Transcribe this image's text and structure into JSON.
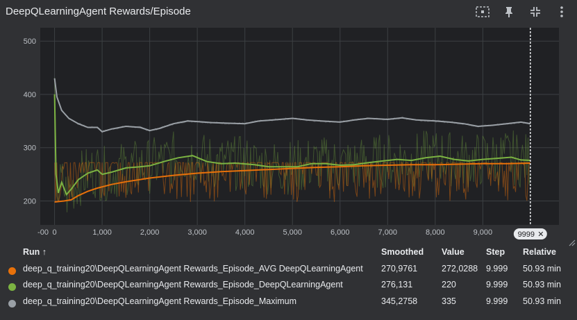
{
  "title": "DeepQLearningAgent Rewards/Episode",
  "toolbar": {
    "icons": [
      "fit-domain-icon",
      "pin-icon",
      "collapse-icon",
      "more-vert-icon"
    ]
  },
  "colors": {
    "avg": "#e8710a",
    "agent": "#7cb342",
    "max": "#9aa0a6",
    "background": "#303134",
    "grid": "#5f6368"
  },
  "chart_data": {
    "type": "line",
    "xlabel": "",
    "ylabel": "",
    "xlim": [
      -300,
      10600
    ],
    "ylim": [
      155,
      525
    ],
    "x_ticks": [
      "-00",
      "0",
      "1,000",
      "2,000",
      "3,000",
      "4,000",
      "5,000",
      "6,000",
      "7,000",
      "8,000",
      "9,000"
    ],
    "x_tick_values": [
      -900,
      0,
      1000,
      2000,
      3000,
      4000,
      5000,
      6000,
      7000,
      8000,
      9000
    ],
    "y_ticks": [
      "200",
      "300",
      "400",
      "500"
    ],
    "y_tick_values": [
      200,
      300,
      400,
      500
    ],
    "cursor_x": 9999,
    "cursor_label": "9999",
    "grid": true,
    "series": [
      {
        "name": "deep_q_training20\\DeepQLearningAgent Rewards_Episode_Maximum",
        "color": "#9aa0a6",
        "smoothed": [
          [
            0,
            430
          ],
          [
            50,
            395
          ],
          [
            150,
            370
          ],
          [
            300,
            355
          ],
          [
            500,
            345
          ],
          [
            700,
            338
          ],
          [
            900,
            338
          ],
          [
            1000,
            330
          ],
          [
            1200,
            335
          ],
          [
            1500,
            340
          ],
          [
            1800,
            338
          ],
          [
            2000,
            332
          ],
          [
            2200,
            336
          ],
          [
            2500,
            345
          ],
          [
            2800,
            350
          ],
          [
            3000,
            349
          ],
          [
            3300,
            347
          ],
          [
            3600,
            346
          ],
          [
            4000,
            345
          ],
          [
            4300,
            350
          ],
          [
            4600,
            352
          ],
          [
            5000,
            355
          ],
          [
            5300,
            352
          ],
          [
            5600,
            350
          ],
          [
            6000,
            348
          ],
          [
            6300,
            352
          ],
          [
            6600,
            355
          ],
          [
            7000,
            353
          ],
          [
            7300,
            356
          ],
          [
            7600,
            352
          ],
          [
            8000,
            350
          ],
          [
            8300,
            348
          ],
          [
            8600,
            345
          ],
          [
            8900,
            340
          ],
          [
            9200,
            342
          ],
          [
            9500,
            345
          ],
          [
            9800,
            348
          ],
          [
            9999,
            345
          ]
        ],
        "raw_band": [
          335,
          500
        ],
        "smoothed_value": "345,2758",
        "value": "335",
        "step": "9.999",
        "relative": "50.93 min"
      },
      {
        "name": "deep_q_training20\\DeepQLearningAgent Rewards_Episode_DeepQLearningAgent",
        "color": "#7cb342",
        "smoothed": [
          [
            0,
            400
          ],
          [
            30,
            250
          ],
          [
            80,
            215
          ],
          [
            150,
            235
          ],
          [
            250,
            212
          ],
          [
            350,
            222
          ],
          [
            500,
            240
          ],
          [
            700,
            252
          ],
          [
            900,
            258
          ],
          [
            1000,
            250
          ],
          [
            1200,
            254
          ],
          [
            1500,
            262
          ],
          [
            1800,
            264
          ],
          [
            2000,
            266
          ],
          [
            2300,
            274
          ],
          [
            2600,
            281
          ],
          [
            2900,
            285
          ],
          [
            3200,
            274
          ],
          [
            3500,
            270
          ],
          [
            3800,
            271
          ],
          [
            4200,
            268
          ],
          [
            4500,
            264
          ],
          [
            4800,
            264
          ],
          [
            5100,
            264
          ],
          [
            5400,
            270
          ],
          [
            5700,
            270
          ],
          [
            6000,
            267
          ],
          [
            6300,
            268
          ],
          [
            6600,
            272
          ],
          [
            6900,
            275
          ],
          [
            7200,
            278
          ],
          [
            7500,
            276
          ],
          [
            7800,
            281
          ],
          [
            8100,
            284
          ],
          [
            8400,
            278
          ],
          [
            8700,
            275
          ],
          [
            9000,
            278
          ],
          [
            9300,
            280
          ],
          [
            9600,
            282
          ],
          [
            9800,
            277
          ],
          [
            9999,
            276
          ]
        ],
        "raw_band": [
          195,
          300
        ],
        "smoothed_value": "276,131",
        "value": "220",
        "step": "9.999",
        "relative": "50.93 min"
      },
      {
        "name": "deep_q_training20\\DeepQLearningAgent Rewards_Episode_AVG DeepQLearningAgent",
        "color": "#e8710a",
        "smoothed": [
          [
            0,
            198
          ],
          [
            100,
            199
          ],
          [
            200,
            200
          ],
          [
            350,
            202
          ],
          [
            500,
            210
          ],
          [
            700,
            218
          ],
          [
            900,
            224
          ],
          [
            1200,
            231
          ],
          [
            1500,
            236
          ],
          [
            2000,
            243
          ],
          [
            2500,
            248
          ],
          [
            3000,
            252
          ],
          [
            3500,
            255
          ],
          [
            4000,
            257
          ],
          [
            4500,
            259
          ],
          [
            5000,
            261
          ],
          [
            5500,
            263
          ],
          [
            6000,
            264
          ],
          [
            6500,
            266
          ],
          [
            7000,
            267
          ],
          [
            7500,
            268
          ],
          [
            8000,
            268
          ],
          [
            8500,
            269
          ],
          [
            9000,
            270
          ],
          [
            9500,
            270
          ],
          [
            9999,
            271
          ]
        ],
        "raw_band": [
          198,
          272
        ],
        "smoothed_value": "270,9761",
        "value": "272,0288",
        "step": "9.999",
        "relative": "50.93 min"
      }
    ]
  },
  "legend": {
    "headers": {
      "run": "Run ↑",
      "smoothed": "Smoothed",
      "value": "Value",
      "step": "Step",
      "relative": "Relative"
    },
    "rows": [
      {
        "name": "deep_q_training20\\DeepQLearningAgent Rewards_Episode_AVG DeepQLearningAgent",
        "smoothed": "270,9761",
        "value": "272,0288",
        "step": "9.999",
        "relative": "50.93 min",
        "color": "#e8710a"
      },
      {
        "name": "deep_q_training20\\DeepQLearningAgent Rewards_Episode_DeepQLearningAgent",
        "smoothed": "276,131",
        "value": "220",
        "step": "9.999",
        "relative": "50.93 min",
        "color": "#7cb342"
      },
      {
        "name": "deep_q_training20\\DeepQLearningAgent Rewards_Episode_Maximum",
        "smoothed": "345,2758",
        "value": "335",
        "step": "9.999",
        "relative": "50.93 min",
        "color": "#9aa0a6"
      }
    ]
  }
}
